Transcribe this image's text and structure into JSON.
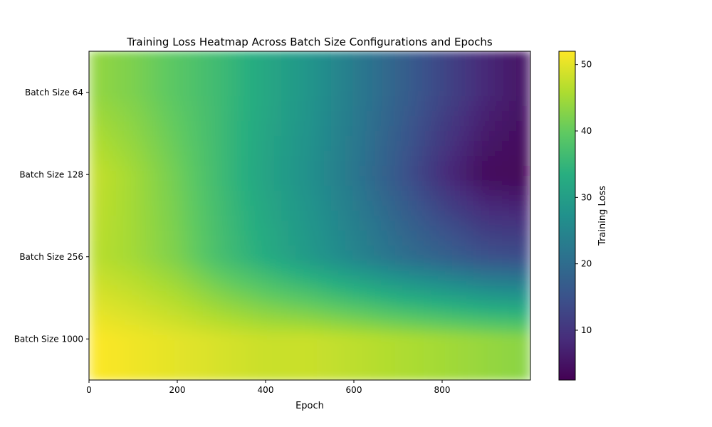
{
  "chart_data": {
    "type": "heatmap",
    "title": "Training Loss Heatmap Across Batch Size Configurations and Epochs",
    "xlabel": "Epoch",
    "ylabel": "",
    "colorbar_label": "Training Loss",
    "colormap": "viridis",
    "x": [
      0,
      100,
      200,
      300,
      400,
      500,
      600,
      700,
      800,
      900,
      1000
    ],
    "xlim": [
      0,
      1000
    ],
    "x_ticks": [
      0,
      200,
      400,
      600,
      800
    ],
    "row_labels": [
      "Batch Size 64",
      "Batch Size 128",
      "Batch Size 256",
      "Batch Size 1000"
    ],
    "z": [
      [
        44,
        42,
        39,
        36,
        32,
        28,
        23,
        18,
        13,
        8,
        5
      ],
      [
        48,
        45,
        41,
        36,
        31,
        27,
        22,
        16,
        9,
        4,
        3
      ],
      [
        47,
        45,
        42,
        37,
        33,
        29,
        25,
        21,
        18,
        15,
        14
      ],
      [
        52,
        51,
        50,
        49,
        48,
        48,
        47,
        46,
        45,
        44,
        43
      ]
    ],
    "clim": [
      2.5,
      52
    ],
    "colorbar_ticks": [
      10,
      20,
      30,
      40,
      50
    ],
    "grid": false
  }
}
